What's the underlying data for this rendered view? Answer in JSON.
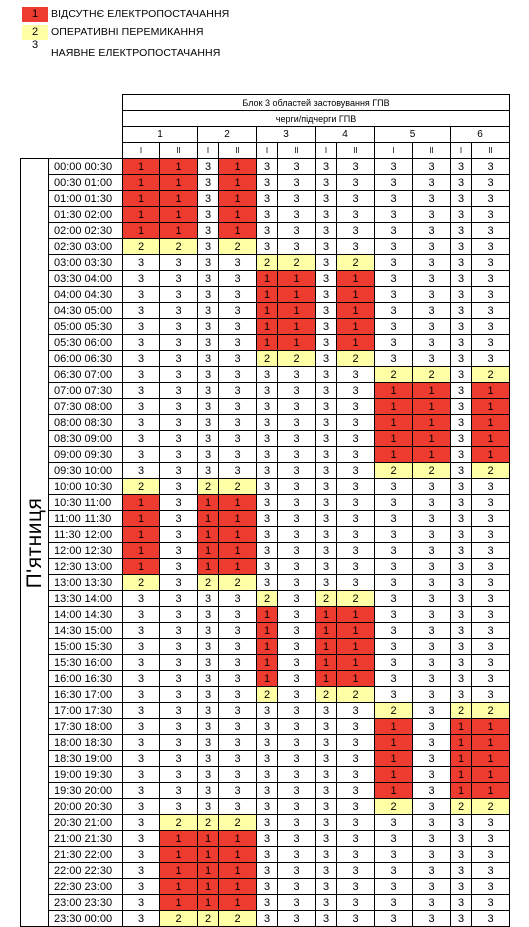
{
  "legend": [
    {
      "code": "1",
      "label": "ВІДСУТНЄ ЕЛЕКТРОПОСТАЧАННЯ",
      "color": "#ee3b2f"
    },
    {
      "code": "2",
      "label": "ОПЕРАТИВНІ ПЕРЕМИКАННЯ",
      "color": "#ffffa6"
    },
    {
      "code": "3",
      "label": "НАЯВНЕ ЕЛЕКТРОПОСТАЧАННЯ",
      "color": "#ffffff"
    }
  ],
  "header": {
    "title": "Блок 3 областей застовування ГПВ",
    "subtitle": "черги/підчерги ГПВ",
    "queues": [
      "1",
      "2",
      "3",
      "4",
      "5",
      "6"
    ],
    "subqueues": [
      "I",
      "II"
    ]
  },
  "day": "П'ятниця",
  "rows": [
    {
      "start": "00:00",
      "end": "00:30",
      "v": [
        "1",
        "1",
        "3",
        "1",
        "3",
        "3",
        "3",
        "3",
        "3",
        "3",
        "3",
        "3"
      ]
    },
    {
      "start": "00:30",
      "end": "01:00",
      "v": [
        "1",
        "1",
        "3",
        "1",
        "3",
        "3",
        "3",
        "3",
        "3",
        "3",
        "3",
        "3"
      ]
    },
    {
      "start": "01:00",
      "end": "01:30",
      "v": [
        "1",
        "1",
        "3",
        "1",
        "3",
        "3",
        "3",
        "3",
        "3",
        "3",
        "3",
        "3"
      ]
    },
    {
      "start": "01:30",
      "end": "02:00",
      "v": [
        "1",
        "1",
        "3",
        "1",
        "3",
        "3",
        "3",
        "3",
        "3",
        "3",
        "3",
        "3"
      ]
    },
    {
      "start": "02:00",
      "end": "02:30",
      "v": [
        "1",
        "1",
        "3",
        "1",
        "3",
        "3",
        "3",
        "3",
        "3",
        "3",
        "3",
        "3"
      ]
    },
    {
      "start": "02:30",
      "end": "03:00",
      "v": [
        "2",
        "2",
        "3",
        "2",
        "3",
        "3",
        "3",
        "3",
        "3",
        "3",
        "3",
        "3"
      ]
    },
    {
      "start": "03:00",
      "end": "03:30",
      "v": [
        "3",
        "3",
        "3",
        "3",
        "2",
        "2",
        "3",
        "2",
        "3",
        "3",
        "3",
        "3"
      ]
    },
    {
      "start": "03:30",
      "end": "04:00",
      "v": [
        "3",
        "3",
        "3",
        "3",
        "1",
        "1",
        "3",
        "1",
        "3",
        "3",
        "3",
        "3"
      ]
    },
    {
      "start": "04:00",
      "end": "04:30",
      "v": [
        "3",
        "3",
        "3",
        "3",
        "1",
        "1",
        "3",
        "1",
        "3",
        "3",
        "3",
        "3"
      ]
    },
    {
      "start": "04:30",
      "end": "05:00",
      "v": [
        "3",
        "3",
        "3",
        "3",
        "1",
        "1",
        "3",
        "1",
        "3",
        "3",
        "3",
        "3"
      ]
    },
    {
      "start": "05:00",
      "end": "05:30",
      "v": [
        "3",
        "3",
        "3",
        "3",
        "1",
        "1",
        "3",
        "1",
        "3",
        "3",
        "3",
        "3"
      ]
    },
    {
      "start": "05:30",
      "end": "06:00",
      "v": [
        "3",
        "3",
        "3",
        "3",
        "1",
        "1",
        "3",
        "1",
        "3",
        "3",
        "3",
        "3"
      ]
    },
    {
      "start": "06:00",
      "end": "06:30",
      "v": [
        "3",
        "3",
        "3",
        "3",
        "2",
        "2",
        "3",
        "2",
        "3",
        "3",
        "3",
        "3"
      ]
    },
    {
      "start": "06:30",
      "end": "07:00",
      "v": [
        "3",
        "3",
        "3",
        "3",
        "3",
        "3",
        "3",
        "3",
        "2",
        "2",
        "3",
        "2"
      ]
    },
    {
      "start": "07:00",
      "end": "07:30",
      "v": [
        "3",
        "3",
        "3",
        "3",
        "3",
        "3",
        "3",
        "3",
        "1",
        "1",
        "3",
        "1"
      ]
    },
    {
      "start": "07:30",
      "end": "08:00",
      "v": [
        "3",
        "3",
        "3",
        "3",
        "3",
        "3",
        "3",
        "3",
        "1",
        "1",
        "3",
        "1"
      ]
    },
    {
      "start": "08:00",
      "end": "08:30",
      "v": [
        "3",
        "3",
        "3",
        "3",
        "3",
        "3",
        "3",
        "3",
        "1",
        "1",
        "3",
        "1"
      ]
    },
    {
      "start": "08:30",
      "end": "09:00",
      "v": [
        "3",
        "3",
        "3",
        "3",
        "3",
        "3",
        "3",
        "3",
        "1",
        "1",
        "3",
        "1"
      ]
    },
    {
      "start": "09:00",
      "end": "09:30",
      "v": [
        "3",
        "3",
        "3",
        "3",
        "3",
        "3",
        "3",
        "3",
        "1",
        "1",
        "3",
        "1"
      ]
    },
    {
      "start": "09:30",
      "end": "10:00",
      "v": [
        "3",
        "3",
        "3",
        "3",
        "3",
        "3",
        "3",
        "3",
        "2",
        "2",
        "3",
        "2"
      ]
    },
    {
      "start": "10:00",
      "end": "10:30",
      "v": [
        "2",
        "3",
        "2",
        "2",
        "3",
        "3",
        "3",
        "3",
        "3",
        "3",
        "3",
        "3"
      ]
    },
    {
      "start": "10:30",
      "end": "11:00",
      "v": [
        "1",
        "3",
        "1",
        "1",
        "3",
        "3",
        "3",
        "3",
        "3",
        "3",
        "3",
        "3"
      ]
    },
    {
      "start": "11:00",
      "end": "11:30",
      "v": [
        "1",
        "3",
        "1",
        "1",
        "3",
        "3",
        "3",
        "3",
        "3",
        "3",
        "3",
        "3"
      ]
    },
    {
      "start": "11:30",
      "end": "12:00",
      "v": [
        "1",
        "3",
        "1",
        "1",
        "3",
        "3",
        "3",
        "3",
        "3",
        "3",
        "3",
        "3"
      ]
    },
    {
      "start": "12:00",
      "end": "12:30",
      "v": [
        "1",
        "3",
        "1",
        "1",
        "3",
        "3",
        "3",
        "3",
        "3",
        "3",
        "3",
        "3"
      ]
    },
    {
      "start": "12:30",
      "end": "13:00",
      "v": [
        "1",
        "3",
        "1",
        "1",
        "3",
        "3",
        "3",
        "3",
        "3",
        "3",
        "3",
        "3"
      ]
    },
    {
      "start": "13:00",
      "end": "13:30",
      "v": [
        "2",
        "3",
        "2",
        "2",
        "3",
        "3",
        "3",
        "3",
        "3",
        "3",
        "3",
        "3"
      ]
    },
    {
      "start": "13:30",
      "end": "14:00",
      "v": [
        "3",
        "3",
        "3",
        "3",
        "2",
        "3",
        "2",
        "2",
        "3",
        "3",
        "3",
        "3"
      ]
    },
    {
      "start": "14:00",
      "end": "14:30",
      "v": [
        "3",
        "3",
        "3",
        "3",
        "1",
        "3",
        "1",
        "1",
        "3",
        "3",
        "3",
        "3"
      ]
    },
    {
      "start": "14:30",
      "end": "15:00",
      "v": [
        "3",
        "3",
        "3",
        "3",
        "1",
        "3",
        "1",
        "1",
        "3",
        "3",
        "3",
        "3"
      ]
    },
    {
      "start": "15:00",
      "end": "15:30",
      "v": [
        "3",
        "3",
        "3",
        "3",
        "1",
        "3",
        "1",
        "1",
        "3",
        "3",
        "3",
        "3"
      ]
    },
    {
      "start": "15:30",
      "end": "16:00",
      "v": [
        "3",
        "3",
        "3",
        "3",
        "1",
        "3",
        "1",
        "1",
        "3",
        "3",
        "3",
        "3"
      ]
    },
    {
      "start": "16:00",
      "end": "16:30",
      "v": [
        "3",
        "3",
        "3",
        "3",
        "1",
        "3",
        "1",
        "1",
        "3",
        "3",
        "3",
        "3"
      ]
    },
    {
      "start": "16:30",
      "end": "17:00",
      "v": [
        "3",
        "3",
        "3",
        "3",
        "2",
        "3",
        "2",
        "2",
        "3",
        "3",
        "3",
        "3"
      ]
    },
    {
      "start": "17:00",
      "end": "17:30",
      "v": [
        "3",
        "3",
        "3",
        "3",
        "3",
        "3",
        "3",
        "3",
        "2",
        "3",
        "2",
        "2"
      ]
    },
    {
      "start": "17:30",
      "end": "18:00",
      "v": [
        "3",
        "3",
        "3",
        "3",
        "3",
        "3",
        "3",
        "3",
        "1",
        "3",
        "1",
        "1"
      ]
    },
    {
      "start": "18:00",
      "end": "18:30",
      "v": [
        "3",
        "3",
        "3",
        "3",
        "3",
        "3",
        "3",
        "3",
        "1",
        "3",
        "1",
        "1"
      ]
    },
    {
      "start": "18:30",
      "end": "19:00",
      "v": [
        "3",
        "3",
        "3",
        "3",
        "3",
        "3",
        "3",
        "3",
        "1",
        "3",
        "1",
        "1"
      ]
    },
    {
      "start": "19:00",
      "end": "19:30",
      "v": [
        "3",
        "3",
        "3",
        "3",
        "3",
        "3",
        "3",
        "3",
        "1",
        "3",
        "1",
        "1"
      ]
    },
    {
      "start": "19:30",
      "end": "20:00",
      "v": [
        "3",
        "3",
        "3",
        "3",
        "3",
        "3",
        "3",
        "3",
        "1",
        "3",
        "1",
        "1"
      ]
    },
    {
      "start": "20:00",
      "end": "20:30",
      "v": [
        "3",
        "3",
        "3",
        "3",
        "3",
        "3",
        "3",
        "3",
        "2",
        "3",
        "2",
        "2"
      ]
    },
    {
      "start": "20:30",
      "end": "21:00",
      "v": [
        "3",
        "2",
        "2",
        "2",
        "3",
        "3",
        "3",
        "3",
        "3",
        "3",
        "3",
        "3"
      ]
    },
    {
      "start": "21:00",
      "end": "21:30",
      "v": [
        "3",
        "1",
        "1",
        "1",
        "3",
        "3",
        "3",
        "3",
        "3",
        "3",
        "3",
        "3"
      ]
    },
    {
      "start": "21:30",
      "end": "22:00",
      "v": [
        "3",
        "1",
        "1",
        "1",
        "3",
        "3",
        "3",
        "3",
        "3",
        "3",
        "3",
        "3"
      ]
    },
    {
      "start": "22:00",
      "end": "22:30",
      "v": [
        "3",
        "1",
        "1",
        "1",
        "3",
        "3",
        "3",
        "3",
        "3",
        "3",
        "3",
        "3"
      ]
    },
    {
      "start": "22:30",
      "end": "23:00",
      "v": [
        "3",
        "1",
        "1",
        "1",
        "3",
        "3",
        "3",
        "3",
        "3",
        "3",
        "3",
        "3"
      ]
    },
    {
      "start": "23:00",
      "end": "23:30",
      "v": [
        "3",
        "1",
        "1",
        "1",
        "3",
        "3",
        "3",
        "3",
        "3",
        "3",
        "3",
        "3"
      ]
    },
    {
      "start": "23:30",
      "end": "00:00",
      "v": [
        "3",
        "2",
        "2",
        "2",
        "3",
        "3",
        "3",
        "3",
        "3",
        "3",
        "3",
        "3"
      ]
    }
  ]
}
